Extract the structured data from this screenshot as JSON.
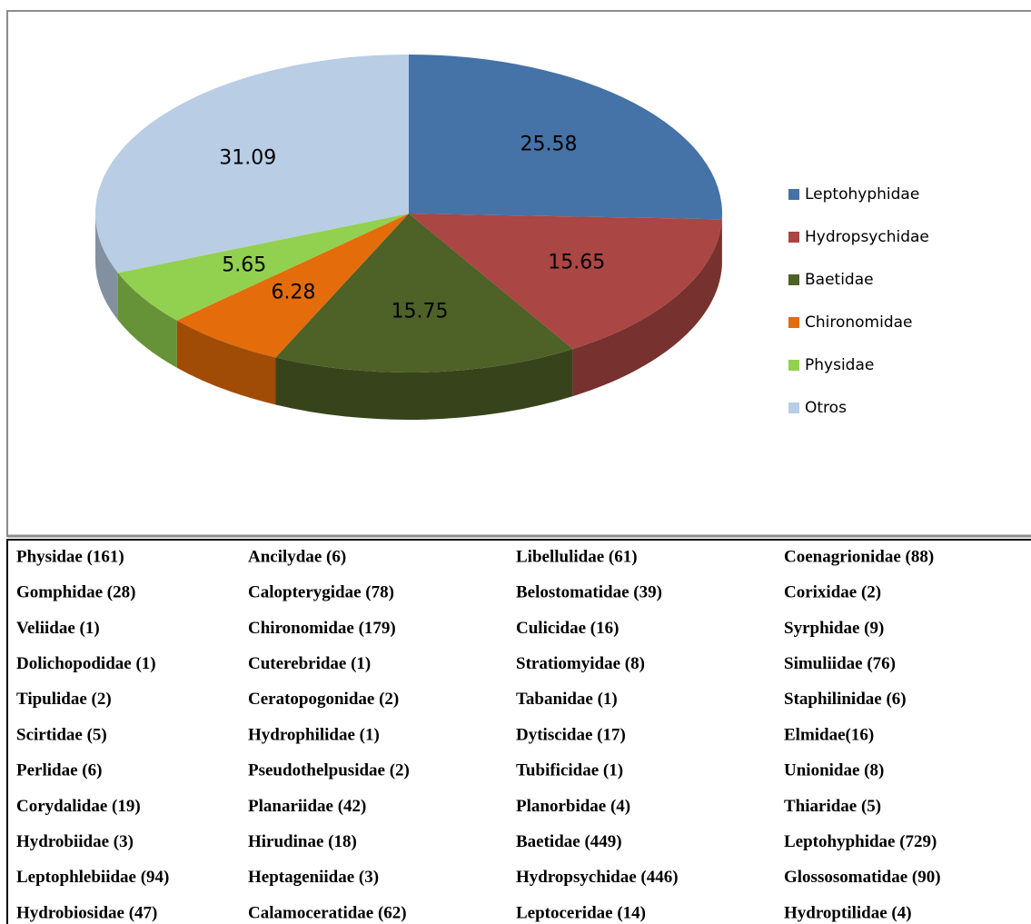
{
  "chart_data": {
    "type": "pie",
    "categories": [
      "Leptohyphidae",
      "Hydropsychidae",
      "Baetidae",
      "Chironomidae",
      "Physidae",
      "Otros"
    ],
    "values": [
      25.58,
      15.65,
      15.75,
      6.28,
      5.65,
      31.09
    ],
    "colors": [
      "#4572a7",
      "#aa4643",
      "#4e6127",
      "#e46c0a",
      "#92d050",
      "#b9cde5"
    ],
    "legend": "right"
  },
  "table": {
    "rows": [
      [
        "Physidae (161)",
        "Ancilydae (6)",
        "Libellulidae (61)",
        "Coenagrionidae (88)"
      ],
      [
        "Gomphidae (28)",
        "Calopterygidae (78)",
        "Belostomatidae (39)",
        "Corixidae (2)"
      ],
      [
        "Veliidae (1)",
        "Chironomidae (179)",
        "Culicidae (16)",
        "Syrphidae (9)"
      ],
      [
        "Dolichopodidae (1)",
        "Cuterebridae (1)",
        "Stratiomyidae (8)",
        "Simuliidae (76)"
      ],
      [
        "Tipulidae (2)",
        "Ceratopogonidae (2)",
        "Tabanidae (1)",
        "Staphilinidae (6)"
      ],
      [
        "Scirtidae (5)",
        "Hydrophilidae (1)",
        "Dytiscidae (17)",
        "Elmidae(16)"
      ],
      [
        "Perlidae (6)",
        "Pseudothelpusidae (2)",
        "Tubificidae (1)",
        "Unionidae (8)"
      ],
      [
        "Corydalidae (19)",
        "Planariidae (42)",
        "Planorbidae (4)",
        "Thiaridae (5)"
      ],
      [
        "Hydrobiidae (3)",
        "Hirudinae (18)",
        "Baetidae (449)",
        "Leptohyphidae (729)"
      ],
      [
        "Leptophlebiidae (94)",
        "Heptageniidae (3)",
        "Hydropsychidae (446)",
        "Glossosomatidae (90)"
      ],
      [
        "Hydrobiosidae (47)",
        "Calamoceratidae (62)",
        "Leptoceridae (14)",
        "Hydroptilidae (4)"
      ]
    ]
  }
}
